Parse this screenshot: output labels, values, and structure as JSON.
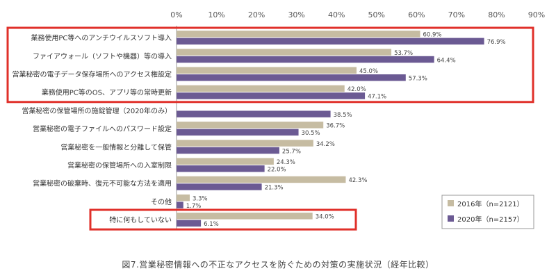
{
  "chart_data": {
    "type": "bar",
    "orientation": "horizontal",
    "categories": [
      "業務使用PC等へのアンチウイルスソフト導入",
      "ファイアウォール（ソフトや機器）等の導入",
      "営業秘密の電子データ保存場所へのアクセス権設定",
      "業務使用PC等のOS、アプリ等の常時更新",
      "営業秘密の保管場所の施錠管理（2020年のみ）",
      "営業秘密の電子ファイルへのパスワード設定",
      "営業秘密を一般情報と分離して保管",
      "営業秘密の保管場所への入室制限",
      "営業秘密の破棄時、復元不可能な方法を適用",
      "その他",
      "特に何もしていない"
    ],
    "series": [
      {
        "name": "2016年（n=2121）",
        "color": "#c6bca2",
        "values": [
          60.9,
          53.7,
          45.0,
          42.0,
          null,
          36.7,
          34.2,
          24.3,
          42.3,
          3.3,
          34.0
        ],
        "labels": [
          "60.9%",
          "53.7%",
          "45.0%",
          "42.0%",
          "",
          "36.7%",
          "34.2%",
          "24.3%",
          "42.3%",
          "3.3%",
          "34.0%"
        ]
      },
      {
        "name": "2020年（n=2157）",
        "color": "#6b5a93",
        "values": [
          76.9,
          64.4,
          57.3,
          47.1,
          38.5,
          30.5,
          25.7,
          22.0,
          21.3,
          1.7,
          6.1
        ],
        "labels": [
          "76.9%",
          "64.4%",
          "57.3%",
          "47.1%",
          "38.5%",
          "30.5%",
          "25.7%",
          "22.0%",
          "21.3%",
          "1.7%",
          "6.1%"
        ]
      }
    ],
    "xlim": [
      0,
      90
    ],
    "ticks": [
      "0%",
      "10%",
      "20%",
      "30%",
      "40%",
      "50%",
      "60%",
      "70%",
      "80%",
      "90%"
    ],
    "title": "",
    "xlabel": "",
    "ylabel": "",
    "grid": false,
    "legend_position": "bottom-right",
    "highlight_color": "#e0302a",
    "highlighted_groups": [
      [
        0,
        3
      ],
      [
        10,
        10
      ]
    ]
  },
  "caption": "図7.営業秘密情報への不正なアクセスを防ぐための対策の実施状況（経年比較）"
}
